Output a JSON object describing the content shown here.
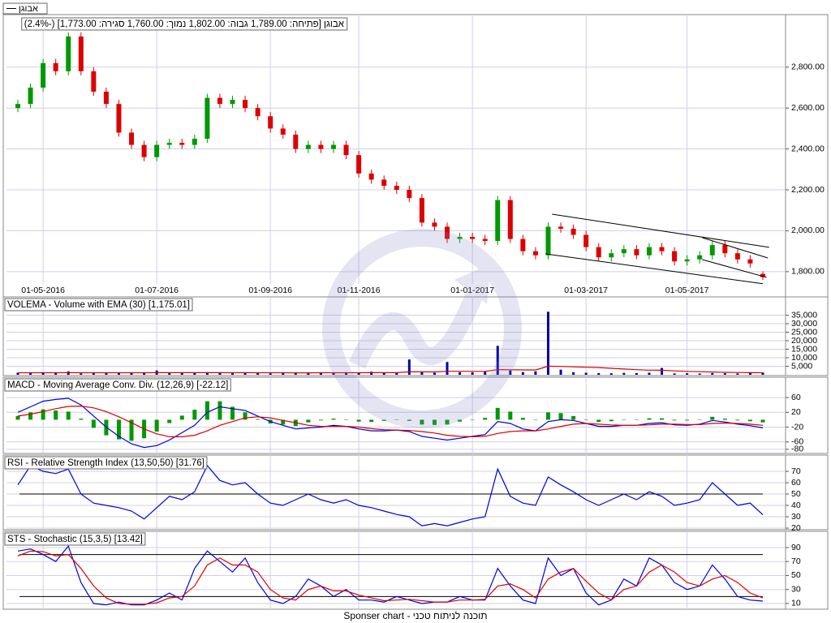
{
  "chart_data": [
    {
      "type": "candlestick",
      "name": "אבוגן",
      "title": "אבוגן [פתיחה: 1,789.00  גבוה: 1,802.00  נמוך: 1,760.00  סגירה: 1,773.00] (-2.4%)",
      "categories": [
        null,
        null,
        "01-05-2016",
        null,
        null,
        null,
        null,
        null,
        null,
        null,
        null,
        "01-07-2016",
        null,
        null,
        null,
        null,
        null,
        null,
        null,
        null,
        "01-09-2016",
        null,
        null,
        null,
        null,
        null,
        null,
        "01-11-2016",
        null,
        null,
        null,
        null,
        null,
        null,
        null,
        null,
        "01-01-2017",
        null,
        null,
        null,
        null,
        null,
        null,
        null,
        null,
        "01-03-2017",
        null,
        null,
        null,
        null,
        null,
        null,
        null,
        "01-05-2017",
        null,
        null,
        null,
        null,
        null,
        null
      ],
      "open": [
        2600,
        2620,
        2700,
        2820,
        2780,
        2950,
        2780,
        2680,
        2620,
        2480,
        2420,
        2360,
        2420,
        2430,
        2420,
        2450,
        2650,
        2620,
        2640,
        2600,
        2560,
        2500,
        2470,
        2400,
        2420,
        2400,
        2420,
        2370,
        2280,
        2250,
        2220,
        2200,
        2160,
        2040,
        2020,
        1960,
        1970,
        1960,
        1950,
        2150,
        1960,
        1900,
        1880,
        2020,
        2010,
        1980,
        1920,
        1870,
        1890,
        1910,
        1880,
        1920,
        1900,
        1850,
        1860,
        1880,
        1930,
        1890,
        1860,
        1789
      ],
      "high": [
        2640,
        2720,
        2840,
        2840,
        2970,
        2970,
        2800,
        2700,
        2640,
        2500,
        2440,
        2440,
        2450,
        2450,
        2470,
        2670,
        2670,
        2660,
        2660,
        2620,
        2580,
        2520,
        2490,
        2440,
        2440,
        2440,
        2440,
        2390,
        2300,
        2270,
        2240,
        2220,
        2180,
        2060,
        2040,
        1990,
        1990,
        1980,
        2170,
        2170,
        1980,
        1920,
        2040,
        2040,
        2030,
        2000,
        1940,
        1910,
        1930,
        1930,
        1940,
        1940,
        1920,
        1880,
        1900,
        1950,
        1950,
        1910,
        1880,
        1802
      ],
      "low": [
        2580,
        2600,
        2680,
        2760,
        2760,
        2760,
        2660,
        2600,
        2460,
        2400,
        2340,
        2340,
        2400,
        2400,
        2400,
        2430,
        2600,
        2600,
        2580,
        2540,
        2480,
        2450,
        2380,
        2380,
        2380,
        2380,
        2350,
        2260,
        2230,
        2200,
        2180,
        2140,
        2020,
        2000,
        1940,
        1940,
        1940,
        1930,
        1930,
        1940,
        1880,
        1860,
        1860,
        1990,
        1960,
        1900,
        1850,
        1850,
        1870,
        1860,
        1860,
        1880,
        1830,
        1830,
        1840,
        1860,
        1870,
        1840,
        1820,
        1760
      ],
      "close": [
        2620,
        2700,
        2820,
        2780,
        2950,
        2780,
        2680,
        2620,
        2480,
        2420,
        2360,
        2420,
        2430,
        2420,
        2450,
        2650,
        2620,
        2640,
        2600,
        2560,
        2500,
        2470,
        2400,
        2420,
        2400,
        2420,
        2370,
        2280,
        2250,
        2220,
        2200,
        2160,
        2040,
        2020,
        1960,
        1970,
        1960,
        1950,
        2150,
        1960,
        1900,
        1880,
        2020,
        2010,
        1980,
        1920,
        1870,
        1890,
        1910,
        1880,
        1920,
        1900,
        1850,
        1860,
        1880,
        1930,
        1890,
        1860,
        1840,
        1773
      ],
      "up_color": "#009900",
      "down_color": "#dd0000",
      "trendlines": [
        {
          "x": [
            42.3,
            59.5
          ],
          "y": [
            2081,
            1919
          ]
        },
        {
          "x": [
            41.8,
            59
          ],
          "y": [
            1887,
            1741
          ]
        },
        {
          "x": [
            54.2,
            59.4
          ],
          "y": [
            1966,
            1867
          ]
        },
        {
          "x": [
            54.2,
            59.3
          ],
          "y": [
            1859,
            1772
          ]
        }
      ],
      "ylim": [
        1740,
        3057
      ],
      "yticks": [
        {
          "value": 1800,
          "label": "1,800.00"
        },
        {
          "value": 2000,
          "label": "2,000.00"
        },
        {
          "value": 2200,
          "label": "2,200.00"
        },
        {
          "value": 2400,
          "label": "2,400.00"
        },
        {
          "value": 2600,
          "label": "2,600.00"
        },
        {
          "value": 2800,
          "label": "2,800.00"
        }
      ],
      "grid": true
    },
    {
      "type": "bar",
      "title": "VOLEMA - Volume with EMA (30) [1,175.01]",
      "values": [
        1200,
        900,
        1500,
        1100,
        2000,
        800,
        1300,
        900,
        1000,
        1100,
        1400,
        2500,
        900,
        1000,
        1200,
        1500,
        1100,
        900,
        1300,
        1000,
        800,
        1200,
        900,
        1100,
        1400,
        1000,
        1500,
        1200,
        1800,
        1300,
        1100,
        9000,
        1600,
        1200,
        7500,
        1500,
        1400,
        1800,
        17000,
        2500,
        1600,
        2000,
        37000,
        3000,
        1500,
        1200,
        1000,
        900,
        1100,
        1000,
        1200,
        4000,
        800,
        900,
        700,
        1000,
        900,
        800,
        1500,
        1300
      ],
      "color": "#0000aa",
      "ema": {
        "color": "#dd0000",
        "values": [
          1200,
          1180,
          1200,
          1190,
          1240,
          1210,
          1210,
          1190,
          1180,
          1170,
          1180,
          1260,
          1240,
          1220,
          1220,
          1240,
          1230,
          1210,
          1220,
          1210,
          1180,
          1180,
          1160,
          1160,
          1180,
          1170,
          1190,
          1190,
          1230,
          1240,
          1230,
          1730,
          1720,
          1690,
          2070,
          2030,
          2000,
          2000,
          3000,
          2970,
          2880,
          2830,
          5040,
          4900,
          4680,
          4450,
          4230,
          3800,
          3400,
          3000,
          2700,
          2650,
          2300,
          2000,
          1800,
          1600,
          1450,
          1350,
          1260,
          1175.01
        ]
      },
      "ylim": [
        0,
        40000
      ],
      "yticks": [
        {
          "value": 5000,
          "label": "5,000"
        },
        {
          "value": 10000,
          "label": "10,000"
        },
        {
          "value": 15000,
          "label": "15,000"
        },
        {
          "value": 20000,
          "label": "20,000"
        },
        {
          "value": 25000,
          "label": "25,000"
        },
        {
          "value": 30000,
          "label": "30,000"
        },
        {
          "value": 35000,
          "label": "35,000"
        }
      ],
      "grid": true
    },
    {
      "type": "macd",
      "title": "MACD - Moving Average Conv. Div. (12,26,9) [-22.12]",
      "series": [
        {
          "color": "#0000dd",
          "values": [
            20,
            35,
            50,
            55,
            58,
            40,
            10,
            -20,
            -45,
            -65,
            -75,
            -70,
            -55,
            -35,
            -15,
            20,
            35,
            30,
            25,
            10,
            -5,
            -15,
            -25,
            -22,
            -20,
            -15,
            -18,
            -25,
            -30,
            -30,
            -28,
            -32,
            -45,
            -50,
            -55,
            -50,
            -45,
            -40,
            -5,
            -10,
            -25,
            -30,
            -5,
            0,
            -2,
            -10,
            -18,
            -18,
            -15,
            -15,
            -10,
            -8,
            -14,
            -15,
            -12,
            -2,
            -6,
            -12,
            -16,
            -22.12
          ]
        },
        {
          "color": "#dd0000",
          "values": [
            10,
            15,
            22,
            30,
            36,
            37,
            32,
            22,
            8,
            -8,
            -25,
            -38,
            -46,
            -46,
            -42,
            -30,
            -15,
            -5,
            5,
            8,
            5,
            -2,
            -8,
            -15,
            -18,
            -18,
            -18,
            -20,
            -24,
            -27,
            -28,
            -29,
            -32,
            -36,
            -42,
            -45,
            -46,
            -45,
            -37,
            -32,
            -30,
            -30,
            -25,
            -18,
            -12,
            -10,
            -12,
            -14,
            -15,
            -15,
            -14,
            -12,
            -12,
            -13,
            -13,
            -10,
            -9,
            -10,
            -12,
            -15
          ]
        }
      ],
      "histogram": [
        10,
        20,
        28,
        25,
        22,
        3,
        -22,
        -42,
        -53,
        -57,
        -50,
        -32,
        -9,
        11,
        27,
        50,
        50,
        35,
        20,
        2,
        -10,
        -13,
        -17,
        -7,
        -2,
        3,
        0,
        -5,
        -6,
        -3,
        0,
        -3,
        -13,
        -14,
        -13,
        -5,
        1,
        5,
        32,
        22,
        5,
        0,
        20,
        18,
        10,
        0,
        -6,
        -4,
        0,
        0,
        4,
        4,
        -2,
        -2,
        1,
        8,
        3,
        -2,
        -4,
        -7.12
      ],
      "histogram_color": "#009900",
      "ylim": [
        -89,
        115
      ],
      "yticks": [
        -80,
        -60,
        -20,
        20,
        60
      ],
      "grid": true
    },
    {
      "type": "line",
      "title": "RSI - Relative Strength Index (13,50,50) [31.76]",
      "series": [
        {
          "color": "#0000dd",
          "values": [
            58,
            75,
            70,
            68,
            72,
            50,
            42,
            40,
            38,
            35,
            28,
            38,
            48,
            45,
            52,
            75,
            62,
            58,
            60,
            50,
            42,
            40,
            45,
            50,
            45,
            42,
            45,
            40,
            38,
            35,
            32,
            30,
            22,
            24,
            22,
            25,
            28,
            30,
            72,
            48,
            42,
            40,
            65,
            58,
            52,
            45,
            40,
            45,
            50,
            45,
            52,
            48,
            40,
            42,
            45,
            60,
            50,
            40,
            42,
            31.76
          ]
        }
      ],
      "hlines": [
        50
      ],
      "ylim": [
        19.3,
        83.6
      ],
      "yticks": [
        20,
        30,
        40,
        50,
        60,
        70
      ],
      "grid": true
    },
    {
      "type": "line",
      "title": "STS - Stochastic (15,3,5) [13.42]",
      "series": [
        {
          "color": "#0000dd",
          "values": [
            85,
            88,
            80,
            70,
            92,
            40,
            10,
            8,
            12,
            8,
            8,
            15,
            25,
            15,
            60,
            85,
            70,
            55,
            75,
            40,
            15,
            10,
            20,
            45,
            35,
            20,
            30,
            15,
            15,
            12,
            20,
            15,
            10,
            12,
            12,
            20,
            15,
            15,
            60,
            35,
            15,
            10,
            75,
            50,
            60,
            25,
            8,
            15,
            45,
            35,
            75,
            65,
            40,
            30,
            35,
            65,
            45,
            20,
            15,
            13.42
          ]
        },
        {
          "color": "#dd0000",
          "values": [
            78,
            85,
            84,
            78,
            80,
            60,
            35,
            18,
            10,
            9,
            9,
            11,
            18,
            20,
            35,
            65,
            75,
            65,
            65,
            55,
            30,
            18,
            15,
            30,
            35,
            28,
            28,
            22,
            18,
            14,
            15,
            16,
            14,
            12,
            12,
            15,
            15,
            16,
            35,
            38,
            30,
            18,
            45,
            55,
            60,
            42,
            25,
            15,
            30,
            35,
            55,
            65,
            55,
            40,
            35,
            45,
            50,
            40,
            25,
            18
          ]
        }
      ],
      "hlines": [
        20,
        80
      ],
      "ylim": [
        3,
        112
      ],
      "yticks": [
        10,
        30,
        50,
        70,
        90
      ],
      "grid": true
    }
  ],
  "footer": "Sponser chart - תוכנה לניתוח טכני"
}
